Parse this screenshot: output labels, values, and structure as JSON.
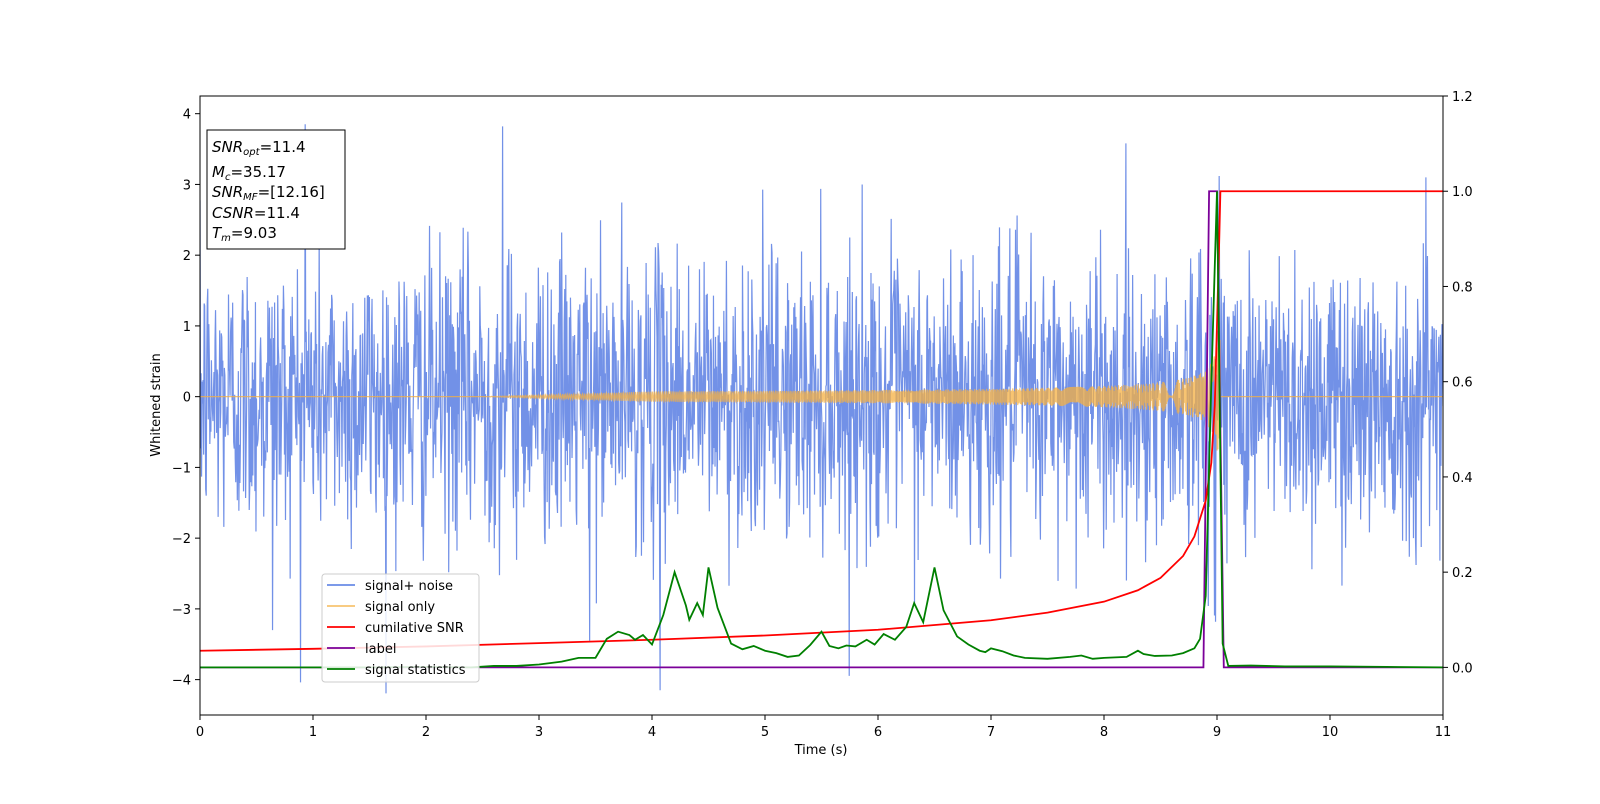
{
  "chart_data": {
    "type": "line",
    "xlabel": "Time (s)",
    "ylabel": "Whitened strain",
    "xlim": [
      0,
      11
    ],
    "ylim": [
      -4.5,
      4.25
    ],
    "y2lim": [
      -0.1,
      1.2
    ],
    "x_ticks": [
      0,
      1,
      2,
      3,
      4,
      5,
      6,
      7,
      8,
      9,
      10,
      11
    ],
    "x_tick_labels": [
      "0",
      "1",
      "2",
      "3",
      "4",
      "5",
      "6",
      "7",
      "8",
      "9",
      "10",
      "11"
    ],
    "y_ticks": [
      -4,
      -3,
      -2,
      -1,
      0,
      1,
      2,
      3,
      4
    ],
    "y_tick_labels": [
      "−4",
      "−3",
      "−2",
      "−1",
      "0",
      "1",
      "2",
      "3",
      "4"
    ],
    "y2_ticks": [
      0.0,
      0.2,
      0.4,
      0.6,
      0.8,
      1.0,
      1.2
    ],
    "y2_tick_labels": [
      "0.0",
      "0.2",
      "0.4",
      "0.6",
      "0.8",
      "1.0",
      "1.2"
    ],
    "grid": false,
    "legend_position": "lower-left",
    "info_box": {
      "position": "top-left",
      "lines": [
        {
          "main": "SNR",
          "sub": "opt",
          "rest": "=11.4"
        },
        {
          "main": "M",
          "sub": "c",
          "rest": "=35.17"
        },
        {
          "main": "SNR",
          "sub": "MF",
          "rest": "=[12.16]"
        },
        {
          "main": "CSNR",
          "sub": "",
          "rest": "=11.4"
        },
        {
          "main": "T",
          "sub": "m",
          "rest": "=9.03"
        }
      ]
    },
    "series": [
      {
        "name": "signal+ noise",
        "color": "#6a8be6",
        "axis": "left",
        "description_kind": "whitened gaussian noise",
        "noise_std": 1.0,
        "peak_values": [
          {
            "x": 0.93,
            "y": 3.85
          },
          {
            "x": 2.68,
            "y": 3.82
          },
          {
            "x": 9.02,
            "y": 3.12
          },
          {
            "x": 10.85,
            "y": 3.1
          },
          {
            "x": 4.07,
            "y": -4.15
          },
          {
            "x": 0.64,
            "y": -3.3
          },
          {
            "x": 3.45,
            "y": -3.45
          }
        ]
      },
      {
        "name": "signal only",
        "color": "#f5b041",
        "axis": "left",
        "chirp_start": 2.5,
        "merger_time": 9.03,
        "peak_amplitude": 0.9
      },
      {
        "name": "cumilative SNR",
        "color": "#ff0000",
        "axis": "right",
        "x": [
          0,
          1,
          2,
          3,
          4,
          5,
          6,
          7,
          7.5,
          8,
          8.3,
          8.5,
          8.7,
          8.8,
          8.9,
          8.95,
          8.98,
          9.0,
          9.02,
          9.03,
          11
        ],
        "y": [
          0.035,
          0.039,
          0.044,
          0.051,
          0.058,
          0.067,
          0.079,
          0.099,
          0.115,
          0.138,
          0.162,
          0.188,
          0.234,
          0.275,
          0.35,
          0.43,
          0.55,
          0.72,
          0.9,
          1.0,
          1.0
        ]
      },
      {
        "name": "label",
        "color": "#7b0099",
        "axis": "right",
        "x": [
          0,
          8.88,
          8.93,
          9.0,
          9.06,
          11
        ],
        "y": [
          0.0,
          0.0,
          1.0,
          1.0,
          0.0,
          0.0
        ]
      },
      {
        "name": "signal statistics",
        "color": "#008000",
        "axis": "right",
        "x": [
          0,
          0.5,
          1.0,
          1.5,
          2.0,
          2.4,
          2.6,
          2.8,
          3.0,
          3.2,
          3.35,
          3.5,
          3.6,
          3.7,
          3.8,
          3.85,
          3.92,
          4.0,
          4.1,
          4.2,
          4.3,
          4.33,
          4.4,
          4.45,
          4.5,
          4.58,
          4.7,
          4.8,
          4.9,
          5.0,
          5.1,
          5.2,
          5.3,
          5.4,
          5.5,
          5.57,
          5.65,
          5.72,
          5.8,
          5.9,
          5.97,
          6.05,
          6.15,
          6.25,
          6.32,
          6.4,
          6.5,
          6.58,
          6.7,
          6.8,
          6.9,
          6.95,
          7.0,
          7.1,
          7.2,
          7.3,
          7.5,
          7.7,
          7.8,
          7.9,
          8.0,
          8.2,
          8.3,
          8.35,
          8.45,
          8.6,
          8.7,
          8.8,
          8.85,
          8.9,
          8.95,
          9.0,
          9.05,
          9.1,
          9.3,
          9.6,
          10.0,
          10.5,
          11.0
        ],
        "y": [
          0.0,
          0.0,
          0.0,
          0.0,
          0.001,
          0.0,
          0.003,
          0.003,
          0.006,
          0.012,
          0.02,
          0.02,
          0.06,
          0.075,
          0.068,
          0.058,
          0.068,
          0.048,
          0.11,
          0.2,
          0.13,
          0.1,
          0.135,
          0.11,
          0.21,
          0.125,
          0.05,
          0.038,
          0.045,
          0.035,
          0.03,
          0.022,
          0.025,
          0.047,
          0.075,
          0.045,
          0.04,
          0.046,
          0.044,
          0.058,
          0.048,
          0.07,
          0.058,
          0.085,
          0.135,
          0.095,
          0.21,
          0.12,
          0.065,
          0.048,
          0.035,
          0.032,
          0.04,
          0.034,
          0.025,
          0.02,
          0.018,
          0.022,
          0.025,
          0.018,
          0.02,
          0.022,
          0.035,
          0.028,
          0.024,
          0.025,
          0.03,
          0.04,
          0.06,
          0.15,
          0.6,
          1.0,
          0.05,
          0.003,
          0.004,
          0.002,
          0.002,
          0.001,
          0.0
        ]
      }
    ]
  }
}
